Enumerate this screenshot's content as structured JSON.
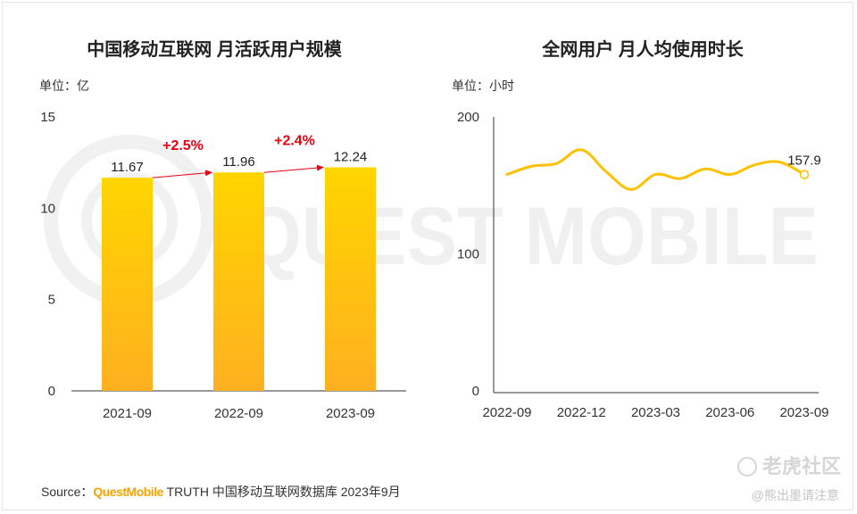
{
  "watermark": {
    "text": "QUEST MOBILE"
  },
  "source": {
    "prefix": "Source：",
    "brand": "QuestMobile",
    "rest": " TRUTH 中国移动互联网数据库 2023年9月"
  },
  "overlay": {
    "logo_text": "老虎社区",
    "credit": "@熊出墨请注意"
  },
  "colors": {
    "bar_top": "#ffd500",
    "bar_bottom": "#ffb020",
    "line": "#ffc000",
    "growth": "#e60012",
    "axis": "#333333",
    "watermark": "#f0f0f0"
  },
  "chart_data": [
    {
      "type": "bar",
      "title": "中国移动互联网 月活跃用户规模",
      "unit_label": "单位：亿",
      "categories": [
        "2021-09",
        "2022-09",
        "2023-09"
      ],
      "values": [
        11.67,
        11.96,
        12.24
      ],
      "value_labels": [
        "11.67",
        "11.96",
        "12.24"
      ],
      "ylim": [
        0,
        15
      ],
      "yticks": [
        "0",
        "5",
        "10",
        "15"
      ],
      "growth": [
        "+2.5%",
        "+2.4%"
      ],
      "grid": false
    },
    {
      "type": "line",
      "title": "全网用户 月人均使用时长",
      "unit_label": "单位：小时",
      "x": [
        "2022-09",
        "2022-10",
        "2022-11",
        "2022-12",
        "2023-01",
        "2023-02",
        "2023-03",
        "2023-04",
        "2023-05",
        "2023-06",
        "2023-07",
        "2023-08",
        "2023-09"
      ],
      "values": [
        158,
        164,
        166,
        176,
        160,
        147,
        158,
        155,
        162,
        158,
        165,
        167,
        157.9
      ],
      "xticks": [
        "2022-09",
        "2022-12",
        "2023-03",
        "2023-06",
        "2023-09"
      ],
      "xtick_index": [
        0,
        3,
        6,
        9,
        12
      ],
      "end_label": "157.9",
      "ylim": [
        0,
        200
      ],
      "yticks": [
        "0",
        "100",
        "200"
      ],
      "grid": false
    }
  ]
}
